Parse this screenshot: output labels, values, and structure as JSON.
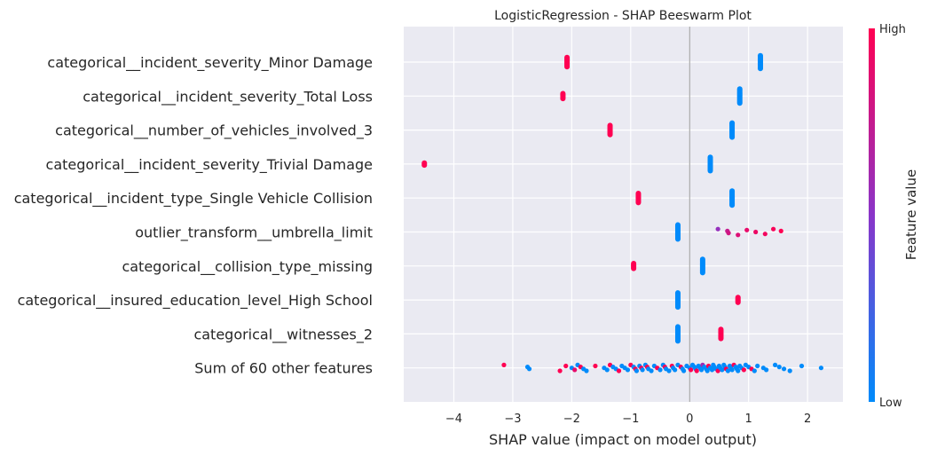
{
  "chart_data": {
    "type": "scatter",
    "title": "LogisticRegression - SHAP Beeswarm Plot",
    "xlabel": "SHAP value (impact on model output)",
    "xlim": [
      -4.85,
      2.6
    ],
    "xticks": [
      -4,
      -3,
      -2,
      -1,
      0,
      1,
      2
    ],
    "xtick_labels": [
      "−4",
      "−3",
      "−2",
      "−1",
      "0",
      "1",
      "2"
    ],
    "grid": true,
    "colorbar": {
      "label": "Feature value",
      "high_label": "High",
      "low_label": "Low",
      "low_color": "#008bfb",
      "high_color": "#ff0052"
    },
    "features": [
      {
        "name": "categorical__incident_severity_Minor Damage",
        "groups": [
          {
            "x": -2.08,
            "color": "high",
            "count": 10,
            "spread": 0.13
          },
          {
            "x": 1.2,
            "color": "low",
            "count": 14,
            "spread": 0.18
          }
        ]
      },
      {
        "name": "categorical__incident_severity_Total Loss",
        "groups": [
          {
            "x": -2.15,
            "color": "high",
            "count": 6,
            "spread": 0.07
          },
          {
            "x": 0.85,
            "color": "low",
            "count": 16,
            "spread": 0.2
          }
        ]
      },
      {
        "name": "categorical__number_of_vehicles_involved_3",
        "groups": [
          {
            "x": -1.35,
            "color": "high",
            "count": 10,
            "spread": 0.13
          },
          {
            "x": 0.72,
            "color": "low",
            "count": 16,
            "spread": 0.2
          }
        ]
      },
      {
        "name": "categorical__incident_severity_Trivial Damage",
        "groups": [
          {
            "x": -4.5,
            "color": "high",
            "count": 3,
            "spread": 0.03
          },
          {
            "x": 0.35,
            "color": "low",
            "count": 15,
            "spread": 0.19
          }
        ]
      },
      {
        "name": "categorical__incident_type_Single Vehicle Collision",
        "groups": [
          {
            "x": -0.87,
            "color": "high",
            "count": 10,
            "spread": 0.13
          },
          {
            "x": 0.72,
            "color": "low",
            "count": 16,
            "spread": 0.2
          }
        ]
      },
      {
        "name": "outlier_transform__umbrella_limit",
        "groups": [
          {
            "x": -0.2,
            "color": "low",
            "count": 16,
            "spread": 0.2
          }
        ],
        "points": [
          {
            "x": 0.48,
            "c": 0.55
          },
          {
            "x": 0.64,
            "c": 0.75
          },
          {
            "x": 0.66,
            "c": 0.8
          },
          {
            "x": 0.82,
            "c": 0.85
          },
          {
            "x": 0.97,
            "c": 0.9
          },
          {
            "x": 1.12,
            "c": 0.92
          },
          {
            "x": 1.28,
            "c": 0.95
          },
          {
            "x": 1.42,
            "c": 0.97
          },
          {
            "x": 1.55,
            "c": 1.0
          }
        ]
      },
      {
        "name": "categorical__collision_type_missing",
        "groups": [
          {
            "x": -0.95,
            "color": "high",
            "count": 6,
            "spread": 0.07
          },
          {
            "x": 0.22,
            "color": "low",
            "count": 15,
            "spread": 0.19
          }
        ]
      },
      {
        "name": "categorical__insured_education_level_High School",
        "groups": [
          {
            "x": -0.2,
            "color": "low",
            "count": 16,
            "spread": 0.2
          },
          {
            "x": 0.82,
            "color": "high",
            "count": 6,
            "spread": 0.07
          }
        ]
      },
      {
        "name": "categorical__witnesses_2",
        "groups": [
          {
            "x": -0.2,
            "color": "low",
            "count": 16,
            "spread": 0.2
          },
          {
            "x": 0.53,
            "color": "high",
            "count": 10,
            "spread": 0.13
          }
        ]
      },
      {
        "name": "Sum of 60 other features",
        "points": [
          {
            "x": -3.15,
            "c": 1
          },
          {
            "x": -2.75,
            "c": 0
          },
          {
            "x": -2.72,
            "c": 0
          },
          {
            "x": -2.2,
            "c": 1
          },
          {
            "x": -2.1,
            "c": 1
          },
          {
            "x": -2.0,
            "c": 0
          },
          {
            "x": -1.95,
            "c": 0.9
          },
          {
            "x": -1.9,
            "c": 0
          },
          {
            "x": -1.85,
            "c": 1
          },
          {
            "x": -1.8,
            "c": 0
          },
          {
            "x": -1.75,
            "c": 0
          },
          {
            "x": -1.6,
            "c": 1
          },
          {
            "x": -1.45,
            "c": 0
          },
          {
            "x": -1.4,
            "c": 0
          },
          {
            "x": -1.35,
            "c": 1
          },
          {
            "x": -1.3,
            "c": 0
          },
          {
            "x": -1.25,
            "c": 0
          },
          {
            "x": -1.2,
            "c": 1
          },
          {
            "x": -1.15,
            "c": 0
          },
          {
            "x": -1.1,
            "c": 0
          },
          {
            "x": -1.05,
            "c": 0
          },
          {
            "x": -1.0,
            "c": 1
          },
          {
            "x": -0.95,
            "c": 0
          },
          {
            "x": -0.92,
            "c": 1
          },
          {
            "x": -0.9,
            "c": 0
          },
          {
            "x": -0.85,
            "c": 0
          },
          {
            "x": -0.82,
            "c": 1
          },
          {
            "x": -0.8,
            "c": 0
          },
          {
            "x": -0.75,
            "c": 0
          },
          {
            "x": -0.72,
            "c": 1
          },
          {
            "x": -0.7,
            "c": 0
          },
          {
            "x": -0.65,
            "c": 0
          },
          {
            "x": -0.6,
            "c": 0
          },
          {
            "x": -0.55,
            "c": 1
          },
          {
            "x": -0.5,
            "c": 0
          },
          {
            "x": -0.45,
            "c": 0
          },
          {
            "x": -0.42,
            "c": 1
          },
          {
            "x": -0.4,
            "c": 0
          },
          {
            "x": -0.35,
            "c": 0
          },
          {
            "x": -0.3,
            "c": 1
          },
          {
            "x": -0.28,
            "c": 0
          },
          {
            "x": -0.25,
            "c": 0
          },
          {
            "x": -0.2,
            "c": 0
          },
          {
            "x": -0.15,
            "c": 1
          },
          {
            "x": -0.12,
            "c": 0
          },
          {
            "x": -0.1,
            "c": 0
          },
          {
            "x": -0.05,
            "c": 0
          },
          {
            "x": 0.0,
            "c": 0
          },
          {
            "x": 0.02,
            "c": 1
          },
          {
            "x": 0.05,
            "c": 0
          },
          {
            "x": 0.08,
            "c": 0
          },
          {
            "x": 0.1,
            "c": 0
          },
          {
            "x": 0.12,
            "c": 1
          },
          {
            "x": 0.15,
            "c": 0
          },
          {
            "x": 0.18,
            "c": 0
          },
          {
            "x": 0.2,
            "c": 0
          },
          {
            "x": 0.22,
            "c": 0.6
          },
          {
            "x": 0.25,
            "c": 0
          },
          {
            "x": 0.28,
            "c": 0
          },
          {
            "x": 0.3,
            "c": 0
          },
          {
            "x": 0.32,
            "c": 1
          },
          {
            "x": 0.35,
            "c": 0
          },
          {
            "x": 0.38,
            "c": 0
          },
          {
            "x": 0.4,
            "c": 0
          },
          {
            "x": 0.42,
            "c": 0
          },
          {
            "x": 0.45,
            "c": 0
          },
          {
            "x": 0.48,
            "c": 1
          },
          {
            "x": 0.5,
            "c": 0
          },
          {
            "x": 0.52,
            "c": 0
          },
          {
            "x": 0.55,
            "c": 0
          },
          {
            "x": 0.58,
            "c": 0
          },
          {
            "x": 0.6,
            "c": 0
          },
          {
            "x": 0.62,
            "c": 1
          },
          {
            "x": 0.65,
            "c": 0
          },
          {
            "x": 0.68,
            "c": 0
          },
          {
            "x": 0.7,
            "c": 0
          },
          {
            "x": 0.72,
            "c": 0
          },
          {
            "x": 0.75,
            "c": 1
          },
          {
            "x": 0.78,
            "c": 0
          },
          {
            "x": 0.8,
            "c": 0
          },
          {
            "x": 0.82,
            "c": 0
          },
          {
            "x": 0.85,
            "c": 0
          },
          {
            "x": 0.88,
            "c": 0
          },
          {
            "x": 0.92,
            "c": 1
          },
          {
            "x": 0.95,
            "c": 0
          },
          {
            "x": 1.0,
            "c": 0
          },
          {
            "x": 1.05,
            "c": 1
          },
          {
            "x": 1.1,
            "c": 0
          },
          {
            "x": 1.15,
            "c": 0
          },
          {
            "x": 1.25,
            "c": 0
          },
          {
            "x": 1.3,
            "c": 0
          },
          {
            "x": 1.45,
            "c": 0
          },
          {
            "x": 1.52,
            "c": 0
          },
          {
            "x": 1.6,
            "c": 0
          },
          {
            "x": 1.7,
            "c": 0
          },
          {
            "x": 1.9,
            "c": 0
          },
          {
            "x": 2.23,
            "c": 0
          }
        ]
      }
    ]
  }
}
